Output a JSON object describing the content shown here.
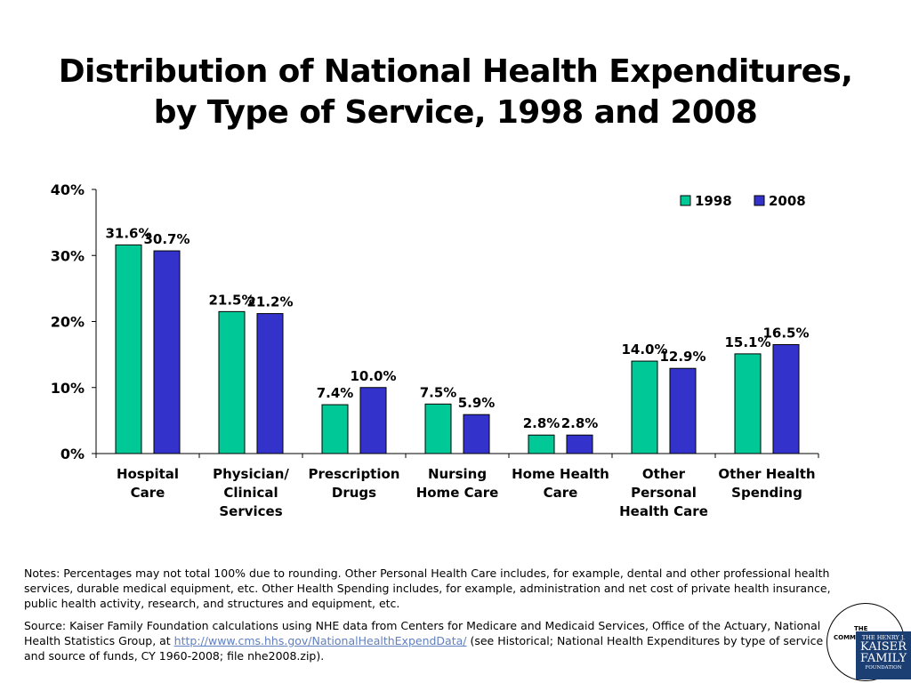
{
  "title": {
    "line1": "Distribution of National Health Expenditures,",
    "line2": "by Type of Service, 1998 and 2008"
  },
  "chart_data": {
    "type": "bar",
    "title": "Distribution of National Health Expenditures, by Type of Service, 1998 and 2008",
    "xlabel": "",
    "ylabel": "",
    "ylim": [
      0,
      40
    ],
    "yticks": [
      "0%",
      "10%",
      "20%",
      "30%",
      "40%"
    ],
    "grid": false,
    "legend": "top-right",
    "categories": [
      [
        "Hospital",
        "Care"
      ],
      [
        "Physician/",
        "Clinical",
        "Services"
      ],
      [
        "Prescription",
        "Drugs"
      ],
      [
        "Nursing",
        "Home Care"
      ],
      [
        "Home Health",
        "Care"
      ],
      [
        "Other",
        "Personal",
        "Health Care"
      ],
      [
        "Other Health",
        "Spending"
      ]
    ],
    "series": [
      {
        "name": "1998",
        "color": "#00c896",
        "values": [
          31.6,
          21.5,
          7.4,
          7.5,
          2.8,
          14.0,
          15.1
        ],
        "labels": [
          "31.6%",
          "21.5%",
          "7.4%",
          "7.5%",
          "2.8%",
          "14.0%",
          "15.1%"
        ]
      },
      {
        "name": "2008",
        "color": "#3333cc",
        "values": [
          30.7,
          21.2,
          10.0,
          5.9,
          2.8,
          12.9,
          16.5
        ],
        "labels": [
          "30.7%",
          "21.2%",
          "10.0%",
          "5.9%",
          "2.8%",
          "12.9%",
          "16.5%"
        ]
      }
    ]
  },
  "notes": {
    "note": "Notes: Percentages may not total 100% due to rounding. Other Personal Health Care includes, for example, dental and other professional health services, durable medical equipment, etc. Other Health Spending includes, for example, administration and net cost of private health insurance, public health activity, research, and structures and equipment, etc.",
    "source_prefix": "Source: Kaiser Family Foundation calculations using NHE data from Centers for Medicare and Medicaid Services, Office of the Actuary, National Health Statistics Group, at ",
    "source_link": "http://www.cms.hhs.gov/NationalHealthExpendData/",
    "source_suffix": " (see Historical; National Health Expenditures by type of service and source of funds, CY 1960-2008; file nhe2008.zip)."
  },
  "logo": {
    "the": "THE",
    "comm": "COMM",
    "line1": "THE HENRY J.",
    "line2": "KAISER",
    "line3": "FAMILY",
    "line4": "FOUNDATION"
  }
}
